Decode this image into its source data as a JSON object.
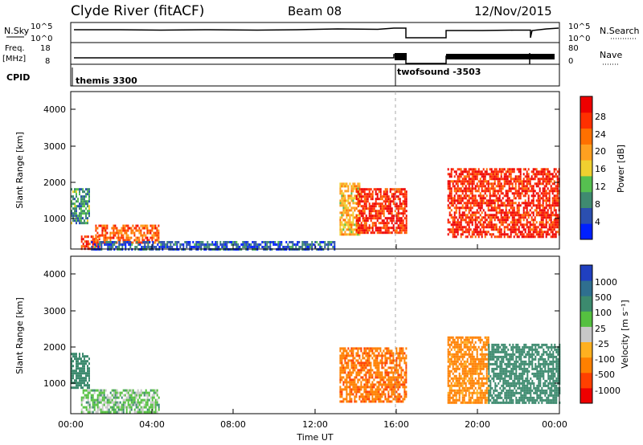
{
  "header": {
    "station": "Clyde River (fitACF)",
    "beam": "Beam 08",
    "date": "12/Nov/2015"
  },
  "nsky_panel": {
    "left_label": "N.Sky",
    "right_label": "N.Search",
    "left_ticks": [
      "10^5",
      "10^0"
    ],
    "right_ticks": [
      "10^5",
      "10^0"
    ]
  },
  "freq_panel": {
    "left_label_1": "Freq.",
    "left_label_2": "[MHz]",
    "right_label": "Nave",
    "left_ticks": [
      "18",
      "8"
    ],
    "right_ticks": [
      "80",
      "0"
    ]
  },
  "cpid_panel": {
    "label": "CPID",
    "program_1": "themis 3300",
    "program_2": "twofsound -3503"
  },
  "time_axis": {
    "label": "Time UT",
    "ticks": [
      "00:00",
      "04:00",
      "08:00",
      "12:00",
      "16:00",
      "20:00",
      "00:00"
    ]
  },
  "power_panel": {
    "ylabel": "Slant Range [km]",
    "yticks": [
      "4000",
      "3000",
      "2000",
      "1000"
    ],
    "colorbar_label": "Power [dB]",
    "colorbar_ticks": [
      "28",
      "24",
      "20",
      "16",
      "12",
      "8",
      "4"
    ],
    "colors": [
      "#0020ff",
      "#2b4fb0",
      "#3f8a70",
      "#56c050",
      "#f0d030",
      "#ffa020",
      "#ff7000",
      "#ff3000",
      "#ee0000"
    ]
  },
  "velocity_panel": {
    "ylabel": "Slant Range [km]",
    "yticks": [
      "4000",
      "3000",
      "2000",
      "1000"
    ],
    "colorbar_label": "Velocity [m s⁻¹]",
    "colorbar_ticks": [
      "1000",
      "500",
      "100",
      "25",
      "-25",
      "-100",
      "-500",
      "-1000"
    ],
    "colors": [
      "#2040c0",
      "#2f6f8f",
      "#3c8a6e",
      "#55c040",
      "#c8c8c8",
      "#ffb020",
      "#ff8000",
      "#ff4000",
      "#ee0000"
    ]
  },
  "chart_data": [
    {
      "type": "heatmap",
      "title": "Power",
      "xlabel": "Time UT",
      "ylabel": "Slant Range [km]",
      "x_range": [
        "00:00",
        "24:00"
      ],
      "ylim": [
        180,
        4500
      ],
      "colorbar": {
        "label": "Power [dB]",
        "range": [
          0,
          32
        ],
        "ticks": [
          4,
          8,
          12,
          16,
          20,
          24,
          28
        ]
      },
      "regions": [
        {
          "t_start": 0.0,
          "t_end": 0.9,
          "range_min": 900,
          "range_max": 1850,
          "power_db": 10
        },
        {
          "t_start": 0.5,
          "t_end": 1.4,
          "range_min": 200,
          "range_max": 550,
          "power_db": 28
        },
        {
          "t_start": 1.2,
          "t_end": 4.3,
          "range_min": 350,
          "range_max": 850,
          "power_db": 24
        },
        {
          "t_start": 1.0,
          "t_end": 13.0,
          "range_min": 200,
          "range_max": 400,
          "power_db": 6
        },
        {
          "t_start": 13.2,
          "t_end": 14.2,
          "range_min": 600,
          "range_max": 2000,
          "power_db": 18
        },
        {
          "t_start": 14.0,
          "t_end": 16.5,
          "range_min": 600,
          "range_max": 1850,
          "power_db": 28
        },
        {
          "t_start": 18.5,
          "t_end": 24.0,
          "range_min": 500,
          "range_max": 2400,
          "power_db": 28
        }
      ],
      "data_gaps": [
        {
          "t_start": 16.5,
          "t_end": 18.5
        }
      ]
    },
    {
      "type": "heatmap",
      "title": "Velocity",
      "xlabel": "Time UT",
      "ylabel": "Slant Range [km]",
      "x_range": [
        "00:00",
        "24:00"
      ],
      "ylim": [
        180,
        4500
      ],
      "colorbar": {
        "label": "Velocity [m s⁻¹]",
        "ticks": [
          1000,
          500,
          100,
          25,
          -25,
          -100,
          -500,
          -1000
        ]
      },
      "regions": [
        {
          "t_start": 0.0,
          "t_end": 0.9,
          "range_min": 900,
          "range_max": 1850,
          "velocity": 200
        },
        {
          "t_start": 0.5,
          "t_end": 4.3,
          "range_min": 200,
          "range_max": 850,
          "velocity": 50
        },
        {
          "t_start": 13.2,
          "t_end": 16.5,
          "range_min": 500,
          "range_max": 2000,
          "velocity": -400
        },
        {
          "t_start": 18.5,
          "t_end": 20.5,
          "range_min": 500,
          "range_max": 2300,
          "velocity": -150
        },
        {
          "t_start": 20.5,
          "t_end": 24.0,
          "range_min": 500,
          "range_max": 2100,
          "velocity": 300
        }
      ],
      "data_gaps": [
        {
          "t_start": 16.5,
          "t_end": 18.5
        }
      ]
    }
  ]
}
